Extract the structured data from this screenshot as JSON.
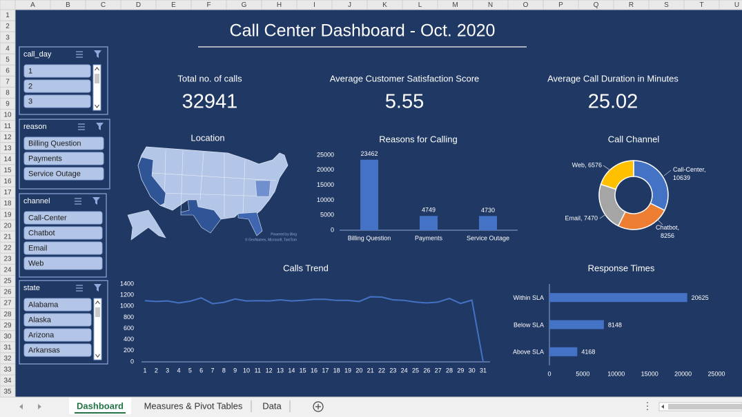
{
  "sheet": {
    "columns": [
      "A",
      "B",
      "C",
      "D",
      "E",
      "F",
      "G",
      "H",
      "I",
      "J",
      "K",
      "L",
      "M",
      "N",
      "O",
      "P",
      "Q",
      "R",
      "S",
      "T",
      "U"
    ],
    "rows": [
      1,
      2,
      3,
      4,
      5,
      6,
      7,
      8,
      9,
      10,
      11,
      12,
      13,
      14,
      15,
      16,
      17,
      18,
      19,
      20,
      21,
      22,
      23,
      24,
      25,
      26,
      27,
      28,
      29,
      30,
      31,
      32,
      33,
      34,
      35
    ]
  },
  "title": "Call Center Dashboard - Oct. 2020",
  "slicers": [
    {
      "name": "call_day",
      "items": [
        1,
        2,
        3
      ]
    },
    {
      "name": "reason",
      "items": [
        "Billing Question",
        "Payments",
        "Service Outage"
      ]
    },
    {
      "name": "channel",
      "items": [
        "Call-Center",
        "Chatbot",
        "Email",
        "Web"
      ]
    },
    {
      "name": "state",
      "items": [
        "Alabama",
        "Alaska",
        "Arizona",
        "Arkansas"
      ]
    }
  ],
  "kpis": [
    {
      "label": "Total no. of calls",
      "value": 32941
    },
    {
      "label": "Average Customer Satisfaction Score",
      "value": 5.55
    },
    {
      "label": "Average Call Duration in Minutes",
      "value": 25.02
    }
  ],
  "map": {
    "title": "Location",
    "credits": [
      "Powered by Bing",
      "© GeoNames, Microsoft, TomTom"
    ]
  },
  "chart_data": [
    {
      "type": "bar",
      "title": "Reasons for Calling",
      "categories": [
        "Billing Question",
        "Payments",
        "Service Outage"
      ],
      "values": [
        23462,
        4749,
        4730
      ],
      "color": "#4472c4",
      "ylim": [
        0,
        25000
      ],
      "yticks": [
        0,
        5000,
        10000,
        15000,
        20000,
        25000
      ],
      "grid": false
    },
    {
      "type": "pie",
      "title": "Call Channel",
      "donut": true,
      "categories": [
        "Call-Center",
        "Chatbot",
        "Email",
        "Web"
      ],
      "values": [
        10639,
        8256,
        7470,
        6576
      ],
      "value_labels": [
        "Call-Center, 10639",
        "Chatbot, 8256",
        "Email, 7470",
        "Web, 6576"
      ],
      "colors": [
        "#4472c4",
        "#ed7d31",
        "#a5a5a5",
        "#ffc000"
      ]
    },
    {
      "type": "line",
      "title": "Calls Trend",
      "categories": [
        1,
        2,
        3,
        4,
        5,
        6,
        7,
        8,
        9,
        10,
        11,
        12,
        13,
        14,
        15,
        16,
        17,
        18,
        19,
        20,
        21,
        22,
        23,
        24,
        25,
        26,
        27,
        28,
        29,
        30,
        31
      ],
      "values": [
        1100,
        1085,
        1095,
        1060,
        1090,
        1150,
        1045,
        1070,
        1130,
        1095,
        1100,
        1095,
        1115,
        1095,
        1105,
        1125,
        1125,
        1105,
        1105,
        1085,
        1170,
        1165,
        1115,
        1105,
        1075,
        1060,
        1075,
        1140,
        1050,
        1110,
        0
      ],
      "color": "#4472c4",
      "ylim": [
        0,
        1400
      ],
      "yticks": [
        0,
        200,
        400,
        600,
        800,
        1000,
        1200,
        1400
      ],
      "grid": false
    },
    {
      "type": "barh",
      "title": "Response Times",
      "categories": [
        "Within SLA",
        "Below SLA",
        "Above SLA"
      ],
      "values": [
        20625,
        8148,
        4168
      ],
      "color": "#4472c4",
      "xlim": [
        0,
        25000
      ],
      "xticks": [
        0,
        5000,
        10000,
        15000,
        20000,
        25000
      ],
      "grid": false
    }
  ],
  "tabs": [
    "Dashboard",
    "Measures & Pivot Tables",
    "Data"
  ]
}
